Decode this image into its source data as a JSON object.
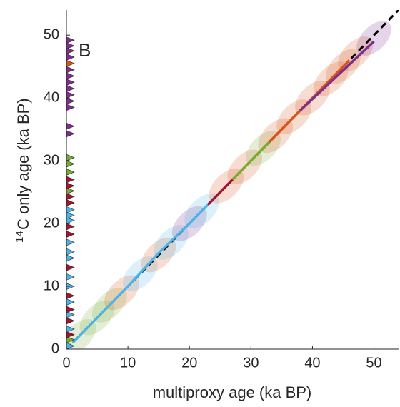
{
  "chart_data": {
    "type": "line",
    "panel_label": "B",
    "xlabel": "multiproxy age (ka BP)",
    "ylabel_superscript": "14",
    "ylabel": "C only age (ka BP)",
    "xlim": [
      0,
      54
    ],
    "ylim": [
      0,
      54
    ],
    "xticks": [
      0,
      10,
      20,
      30,
      40,
      50
    ],
    "yticks": [
      0,
      10,
      20,
      30,
      40,
      50
    ],
    "clouds": {
      "x": [
        2,
        5,
        7,
        9,
        12,
        15,
        17,
        20,
        22,
        26,
        29,
        32,
        34,
        37,
        40,
        43,
        45,
        47,
        50
      ],
      "y": [
        2,
        5,
        7,
        9,
        12,
        15,
        17,
        20,
        22,
        26,
        29,
        32,
        34,
        37,
        40,
        43,
        45,
        47,
        49.5
      ],
      "colors": [
        "#77ac30",
        "#77ac30",
        "#77ac30",
        "#d95319",
        "#4db3e6",
        "#d95319",
        "#4db3e6",
        "#7e2f8e",
        "#4db3e6",
        "#d95319",
        "#d95319",
        "#77ac30",
        "#d95319",
        "#d95319",
        "#d95319",
        "#d95319",
        "#d95319",
        "#d95319",
        "#7e2f8e"
      ]
    },
    "series": [
      {
        "color": "#000000",
        "style": "dashed",
        "x": [
          0,
          54
        ],
        "values": [
          0,
          54
        ]
      },
      {
        "color": "#4db3e6",
        "style": "solid",
        "x": [
          1,
          5,
          10,
          15,
          20,
          23
        ],
        "values": [
          1,
          5,
          10,
          15.3,
          20,
          23
        ]
      },
      {
        "color": "#a2142f",
        "style": "solid",
        "x": [
          23,
          27
        ],
        "values": [
          23,
          27
        ]
      },
      {
        "color": "#77ac30",
        "style": "solid",
        "x": [
          27,
          33
        ],
        "values": [
          27,
          33
        ]
      },
      {
        "color": "#d95319",
        "style": "solid",
        "x": [
          33,
          46
        ],
        "values": [
          33,
          46
        ]
      },
      {
        "color": "#7e2f8e",
        "style": "solid",
        "x": [
          38,
          50
        ],
        "values": [
          38,
          49
        ]
      }
    ],
    "edge_markers": {
      "values": [
        0.5,
        1.5,
        2.3,
        3.2,
        4.5,
        5.5,
        6.3,
        7.5,
        8.5,
        10,
        11.5,
        13,
        14.5,
        15.5,
        17,
        18.3,
        19.5,
        20.5,
        21.3,
        22.2,
        23.3,
        24.3,
        25.2,
        26,
        27,
        28.2,
        29.5,
        30.5,
        34.3,
        35.5,
        38.5,
        39.5,
        40.5,
        41.5,
        42.5,
        43.5,
        44.5,
        45.5,
        46.5,
        47.5,
        48.3,
        49.2
      ],
      "colors": [
        "#4db3e6",
        "#77ac30",
        "#a2142f",
        "#4db3e6",
        "#a2142f",
        "#4db3e6",
        "#a2142f",
        "#4db3e6",
        "#a2142f",
        "#4db3e6",
        "#4db3e6",
        "#a2142f",
        "#4db3e6",
        "#4db3e6",
        "#4db3e6",
        "#a2142f",
        "#a2142f",
        "#4db3e6",
        "#4db3e6",
        "#4db3e6",
        "#a2142f",
        "#a2142f",
        "#77ac30",
        "#a2142f",
        "#a2142f",
        "#77ac30",
        "#77ac30",
        "#77ac30",
        "#7e2f8e",
        "#7e2f8e",
        "#7e2f8e",
        "#7e2f8e",
        "#7e2f8e",
        "#7e2f8e",
        "#7e2f8e",
        "#7e2f8e",
        "#7e2f8e",
        "#d95319",
        "#7e2f8e",
        "#7e2f8e",
        "#7e2f8e",
        "#7e2f8e"
      ]
    }
  }
}
